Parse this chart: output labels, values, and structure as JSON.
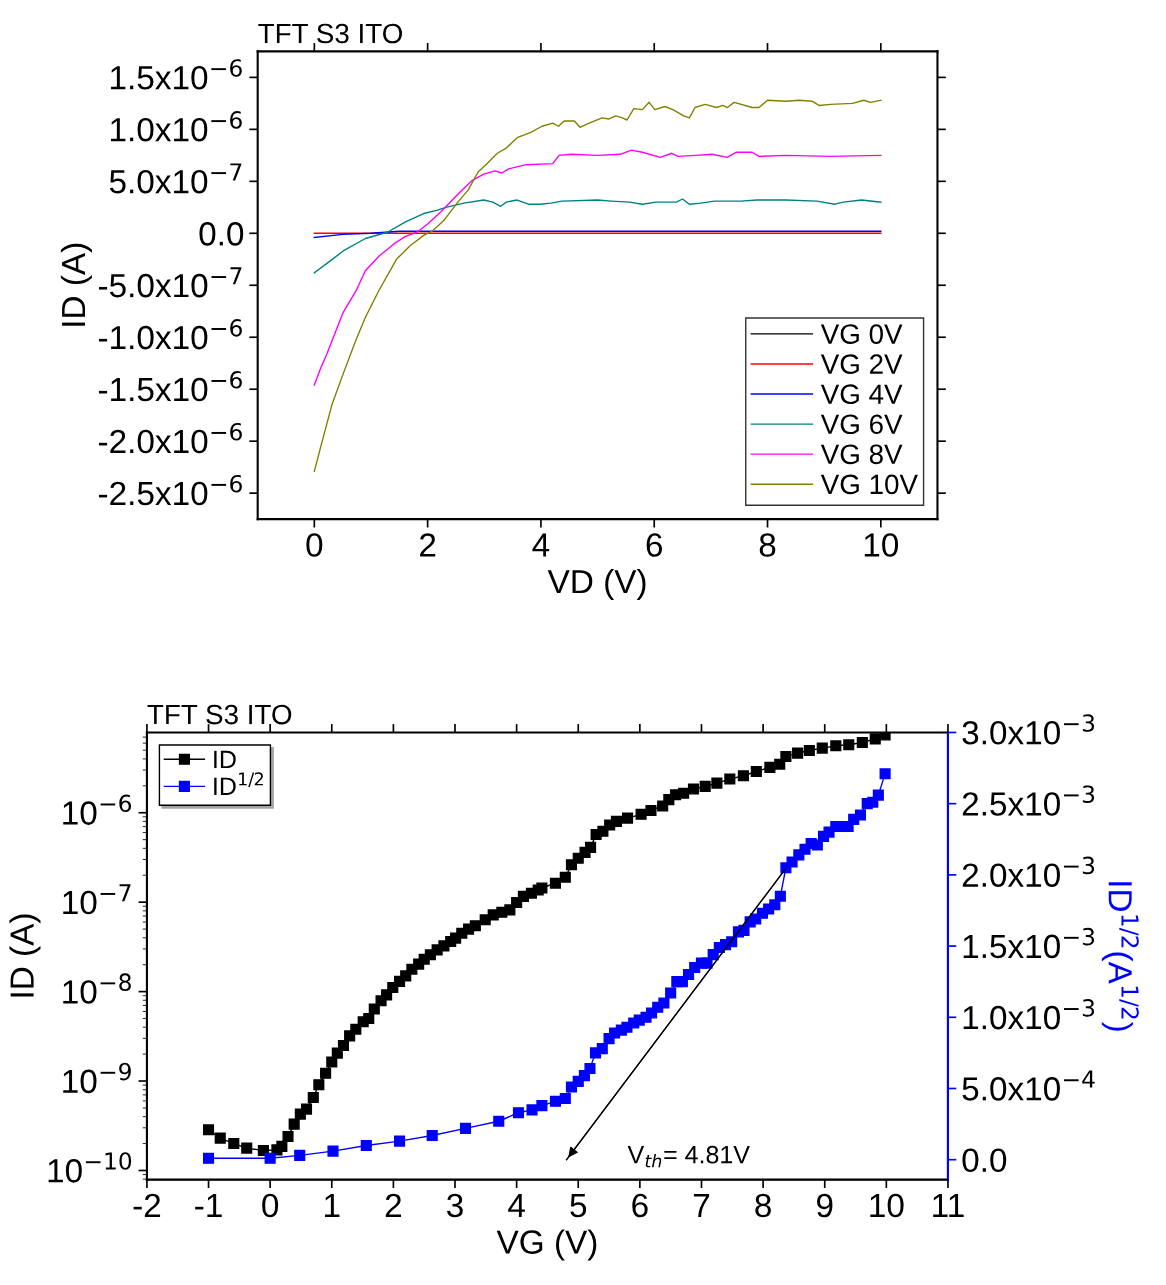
{
  "chart_data": [
    {
      "type": "line",
      "title": "TFT S3 ITO",
      "xlabel": "VD (V)",
      "ylabel": "ID (A)",
      "xlim": [
        -1,
        11
      ],
      "xticks": [
        0,
        2,
        4,
        6,
        8,
        10
      ],
      "ylim": [
        -2.75e-06,
        1.75e-06
      ],
      "yticks": [
        {
          "value": 1.5e-06,
          "label": "1.5x10$^{−6}$"
        },
        {
          "value": 1e-06,
          "label": "1.0x10$^{−6}$"
        },
        {
          "value": 5e-07,
          "label": "5.0x10$^{−7}$"
        },
        {
          "value": 0,
          "label": "0.0"
        },
        {
          "value": -5e-07,
          "label": "-5.0x10$^{−7}$"
        },
        {
          "value": -1e-06,
          "label": "-1.0x10$^{−6}$"
        },
        {
          "value": -1.5e-06,
          "label": "-1.5x10$^{−6}$"
        },
        {
          "value": -2e-06,
          "label": "-2.0x10$^{−6}$"
        },
        {
          "value": -2.5e-06,
          "label": "-2.5x10$^{−6}$"
        }
      ],
      "legend": "bottom right",
      "marker": "none",
      "line_style": "solid",
      "series": [
        {
          "name": "VG 0V",
          "color": "#000000"
        },
        {
          "name": "VG 2V",
          "color": "#ff0000",
          "x": [
            0,
            10
          ],
          "values": [
            0,
            0
          ]
        },
        {
          "name": "VG 4V",
          "color": "#0000ff",
          "x": [
            0,
            0.5,
            1,
            1.5,
            2,
            10
          ],
          "values": [
            -4e-08,
            -1e-08,
            0,
            2e-08,
            2e-08,
            2e-08
          ]
        },
        {
          "name": "VG 6V",
          "color": "#008080",
          "x": [
            0,
            0.27,
            0.51,
            0.9,
            1.29,
            1.61,
            1.93,
            2.16,
            2.32,
            2.64,
            2.99,
            3.15,
            3.29,
            3.39,
            3.58,
            3.78,
            3.98,
            4.18,
            4.37,
            5.0,
            5.24,
            5.56,
            5.79,
            6.03,
            6.39,
            6.5,
            6.62,
            6.82,
            7.06,
            7.53,
            7.81,
            8.32,
            8.87,
            9.19,
            9.34,
            9.66,
            10
          ],
          "values": [
            -3.8e-07,
            -2.7e-07,
            -1.7e-07,
            -5e-08,
            1e-08,
            1.1e-07,
            1.9e-07,
            2.2e-07,
            2.5e-07,
            2.9e-07,
            3.2e-07,
            3e-07,
            2.6e-07,
            3e-07,
            3.2e-07,
            2.8e-07,
            2.8e-07,
            2.9e-07,
            3.1e-07,
            3.2e-07,
            3.1e-07,
            3e-07,
            2.8e-07,
            3e-07,
            3e-07,
            3.3e-07,
            2.8e-07,
            2.9e-07,
            3.1e-07,
            3.1e-07,
            3.2e-07,
            3.2e-07,
            3.1e-07,
            2.8e-07,
            3e-07,
            3.2e-07,
            3e-07
          ]
        },
        {
          "name": "VG 8V",
          "color": "#ff00ff",
          "x": [
            0,
            0.11,
            0.23,
            0.51,
            0.74,
            0.9,
            1.14,
            1.41,
            1.61,
            1.81,
            2.0,
            2.24,
            2.56,
            2.79,
            2.99,
            3.19,
            3.31,
            3.43,
            3.74,
            4.21,
            4.32,
            4.53,
            5.0,
            5.4,
            5.6,
            5.79,
            6.11,
            6.31,
            6.42,
            6.74,
            7.02,
            7.29,
            7.45,
            7.73,
            7.85,
            8.32,
            9.11,
            10
          ],
          "values": [
            -1.46e-06,
            -1.3e-06,
            -1.15e-06,
            -7.6e-07,
            -5.5e-07,
            -3.6e-07,
            -2.2e-07,
            -1e-07,
            -3e-08,
            1e-08,
            9e-08,
            2.1e-07,
            3.9e-07,
            5.1e-07,
            5.7e-07,
            6e-07,
            5.8e-07,
            6.2e-07,
            6.6e-07,
            6.7e-07,
            7.5e-07,
            7.6e-07,
            7.5e-07,
            7.6e-07,
            8e-07,
            7.8e-07,
            7.3e-07,
            7.7e-07,
            7.4e-07,
            7.5e-07,
            7.6e-07,
            7.3e-07,
            7.8e-07,
            7.8e-07,
            7.4e-07,
            7.5e-07,
            7.4e-07,
            7.5e-07
          ]
        },
        {
          "name": "VG 10V",
          "color": "#808000",
          "x": [
            0,
            0.11,
            0.31,
            0.51,
            0.74,
            0.9,
            1.14,
            1.45,
            1.69,
            1.93,
            2.08,
            2.28,
            2.52,
            2.72,
            2.89,
            3.03,
            3.23,
            3.39,
            3.58,
            3.82,
            4.02,
            4.21,
            4.31,
            4.41,
            4.59,
            4.69,
            4.85,
            5.08,
            5.2,
            5.32,
            5.44,
            5.52,
            5.64,
            5.79,
            5.91,
            6.01,
            6.19,
            6.33,
            6.52,
            6.62,
            6.72,
            6.9,
            7.1,
            7.21,
            7.29,
            7.41,
            7.73,
            7.85,
            8.0,
            8.32,
            8.56,
            8.79,
            8.91,
            9.11,
            9.5,
            9.7,
            9.82,
            10
          ],
          "values": [
            -2.29e-06,
            -2.06e-06,
            -1.65e-06,
            -1.35e-06,
            -1.02e-06,
            -8.1e-07,
            -5.5e-07,
            -2.5e-07,
            -1.2e-07,
            -2e-08,
            2e-08,
            1.2e-07,
            2.9e-07,
            4.2e-07,
            5.9e-07,
            6.6e-07,
            7.7e-07,
            8.2e-07,
            9.2e-07,
            9.7e-07,
            1.03e-06,
            1.06e-06,
            1.03e-06,
            1.08e-06,
            1.08e-06,
            1.02e-06,
            1.06e-06,
            1.11e-06,
            1.1e-06,
            1.13e-06,
            1.11e-06,
            1.09e-06,
            1.2e-06,
            1.19e-06,
            1.26e-06,
            1.19e-06,
            1.22e-06,
            1.19e-06,
            1.13e-06,
            1.11e-06,
            1.21e-06,
            1.24e-06,
            1.21e-06,
            1.23e-06,
            1.21e-06,
            1.26e-06,
            1.21e-06,
            1.21e-06,
            1.28e-06,
            1.27e-06,
            1.28e-06,
            1.27e-06,
            1.23e-06,
            1.24e-06,
            1.25e-06,
            1.28e-06,
            1.26e-06,
            1.28e-06
          ]
        }
      ]
    },
    {
      "type": "line",
      "title": "TFT S3 ITO",
      "xlabel": "VG (V)",
      "ylabel": "ID (A)",
      "y2label": "ID$^{1/2}$(A$^{1/2}$)",
      "log": "y",
      "xlim": [
        -2,
        11
      ],
      "xticks": [
        -2,
        -1,
        0,
        1,
        2,
        3,
        4,
        5,
        6,
        7,
        8,
        9,
        10,
        11
      ],
      "ylim": [
        7.9e-11,
        7.9e-06
      ],
      "yticks": [
        {
          "value": 1e-10,
          "label": "10$^{−10}$"
        },
        {
          "value": 1e-09,
          "label": "10$^{−9}$"
        },
        {
          "value": 1e-08,
          "label": "10$^{−8}$"
        },
        {
          "value": 1e-07,
          "label": "10$^{−7}$"
        },
        {
          "value": 1e-06,
          "label": "10$^{−6}$"
        }
      ],
      "y2lim": [
        -0.00014,
        0.003
      ],
      "y2ticks": [
        {
          "value": 0,
          "label": "0.0"
        },
        {
          "value": 0.0005,
          "label": "5.0x10$^{−4}$"
        },
        {
          "value": 0.001,
          "label": "1.0x10$^{−3}$"
        },
        {
          "value": 0.0015,
          "label": "1.5x10$^{−3}$"
        },
        {
          "value": 0.002,
          "label": "2.0x10$^{−3}$"
        },
        {
          "value": 0.0025,
          "label": "2.5x10$^{−3}$"
        },
        {
          "value": 0.003,
          "label": "3.0x10$^{−3}$"
        }
      ],
      "legend": "top left",
      "marker": "square",
      "line_style": "solid",
      "annotations": [
        "V$_{th}$= 4.81V"
      ],
      "series": [
        {
          "name": "ID",
          "color": "#000000",
          "x": [
            -1,
            -0.81,
            -0.59,
            -0.38,
            -0.11,
            0.11,
            0.19,
            0.29,
            0.39,
            0.49,
            0.59,
            0.7,
            0.79,
            0.9,
            1.0,
            1.09,
            1.19,
            1.29,
            1.39,
            1.51,
            1.6,
            1.69,
            1.8,
            1.89,
            1.99,
            2.1,
            2.2,
            2.3,
            2.41,
            2.5,
            2.6,
            2.71,
            2.82,
            2.93,
            3.01,
            3.11,
            3.22,
            3.33,
            3.49,
            3.62,
            3.76,
            3.89,
            4.0,
            4.11,
            4.24,
            4.35,
            4.41,
            4.63,
            4.79,
            4.89,
            5.0,
            5.11,
            5.2,
            5.29,
            5.4,
            5.51,
            5.62,
            5.8,
            6.02,
            6.18,
            6.37,
            6.47,
            6.58,
            6.71,
            6.87,
            7.06,
            7.25,
            7.46,
            7.68,
            7.89,
            8.11,
            8.27,
            8.37,
            8.56,
            8.75,
            8.96,
            9.18,
            9.39,
            9.61,
            9.82,
            9.98
          ],
          "values": [
            2.85e-10,
            2.3e-10,
            2e-10,
            1.78e-10,
            1.67e-10,
            1.7e-10,
            1.86e-10,
            2.4e-10,
            3.3e-10,
            4.27e-10,
            4.85e-10,
            6.55e-10,
            9.1e-10,
            1.22e-09,
            1.63e-09,
            2.05e-09,
            2.5e-09,
            3.2e-09,
            3.8e-09,
            4.6e-09,
            5e-09,
            6.4e-09,
            7.9e-09,
            9.2e-09,
            1.11e-08,
            1.3e-08,
            1.5e-08,
            1.78e-08,
            2.03e-08,
            2.3e-08,
            2.58e-08,
            2.93e-08,
            3.25e-08,
            3.63e-08,
            3.96e-08,
            4.5e-08,
            5e-08,
            5.45e-08,
            6.35e-08,
            7.2e-08,
            7.7e-08,
            8.2e-08,
            9.9e-08,
            1.16e-07,
            1.26e-07,
            1.37e-07,
            1.44e-07,
            1.63e-07,
            1.9e-07,
            2.62e-07,
            3.1e-07,
            3.6e-07,
            4.1e-07,
            5.7e-07,
            6.2e-07,
            7.3e-07,
            8e-07,
            8.7e-07,
            9.6e-07,
            1.06e-06,
            1.19e-06,
            1.4e-06,
            1.59e-06,
            1.65e-06,
            1.84e-06,
            1.97e-06,
            2.14e-06,
            2.38e-06,
            2.59e-06,
            2.89e-06,
            3.21e-06,
            3.49e-06,
            4.26e-06,
            4.64e-06,
            4.97e-06,
            5.27e-06,
            5.6e-06,
            5.75e-06,
            6.1e-06,
            6.7e-06,
            7.4e-06
          ]
        },
        {
          "name": "ID$^{1/2}$",
          "color": "#0000ff",
          "axis": "y2",
          "x": [
            -1,
            0,
            0.48,
            1.02,
            1.56,
            2.1,
            2.63,
            3.17,
            3.71,
            4.03,
            4.25,
            4.41,
            4.63,
            4.79,
            4.89,
            5.0,
            5.1,
            5.19,
            5.28,
            5.39,
            5.5,
            5.59,
            5.7,
            5.79,
            5.9,
            5.99,
            6.1,
            6.19,
            6.29,
            6.39,
            6.5,
            6.6,
            6.69,
            6.79,
            6.89,
            7.0,
            7.09,
            7.19,
            7.29,
            7.39,
            7.49,
            7.6,
            7.69,
            7.79,
            7.88,
            7.99,
            8.09,
            8.19,
            8.28,
            8.37,
            8.47,
            8.58,
            8.68,
            8.78,
            8.88,
            8.98,
            9.07,
            9.18,
            9.28,
            9.38,
            9.47,
            9.58,
            9.69,
            9.78,
            9.87,
            9.98
          ],
          "values": [
            1e-05,
            1e-05,
            3e-05,
            6e-05,
            0.0001,
            0.00013,
            0.00017,
            0.00022,
            0.00027,
            0.00033,
            0.00035,
            0.00038,
            0.00041,
            0.00043,
            0.00051,
            0.00055,
            0.00059,
            0.00064,
            0.00075,
            0.00078,
            0.00085,
            0.00089,
            0.00091,
            0.00093,
            0.00096,
            0.00098,
            0.001,
            0.00103,
            0.00107,
            0.0011,
            0.00117,
            0.00125,
            0.00125,
            0.0013,
            0.00135,
            0.00138,
            0.00138,
            0.00144,
            0.00149,
            0.00151,
            0.00153,
            0.0016,
            0.00161,
            0.00167,
            0.00169,
            0.00173,
            0.00176,
            0.00179,
            0.00185,
            0.00205,
            0.00209,
            0.00214,
            0.00218,
            0.00222,
            0.00221,
            0.00227,
            0.0023,
            0.00234,
            0.00234,
            0.00234,
            0.00239,
            0.00242,
            0.0025,
            0.00251,
            0.00256,
            0.00271
          ]
        },
        {
          "color": "#000000",
          "axis": "y2",
          "type": "line",
          "marker": "none",
          "x": [
            8.36,
            4.81
          ],
          "values": [
            0.00204,
            0
          ]
        }
      ]
    }
  ]
}
